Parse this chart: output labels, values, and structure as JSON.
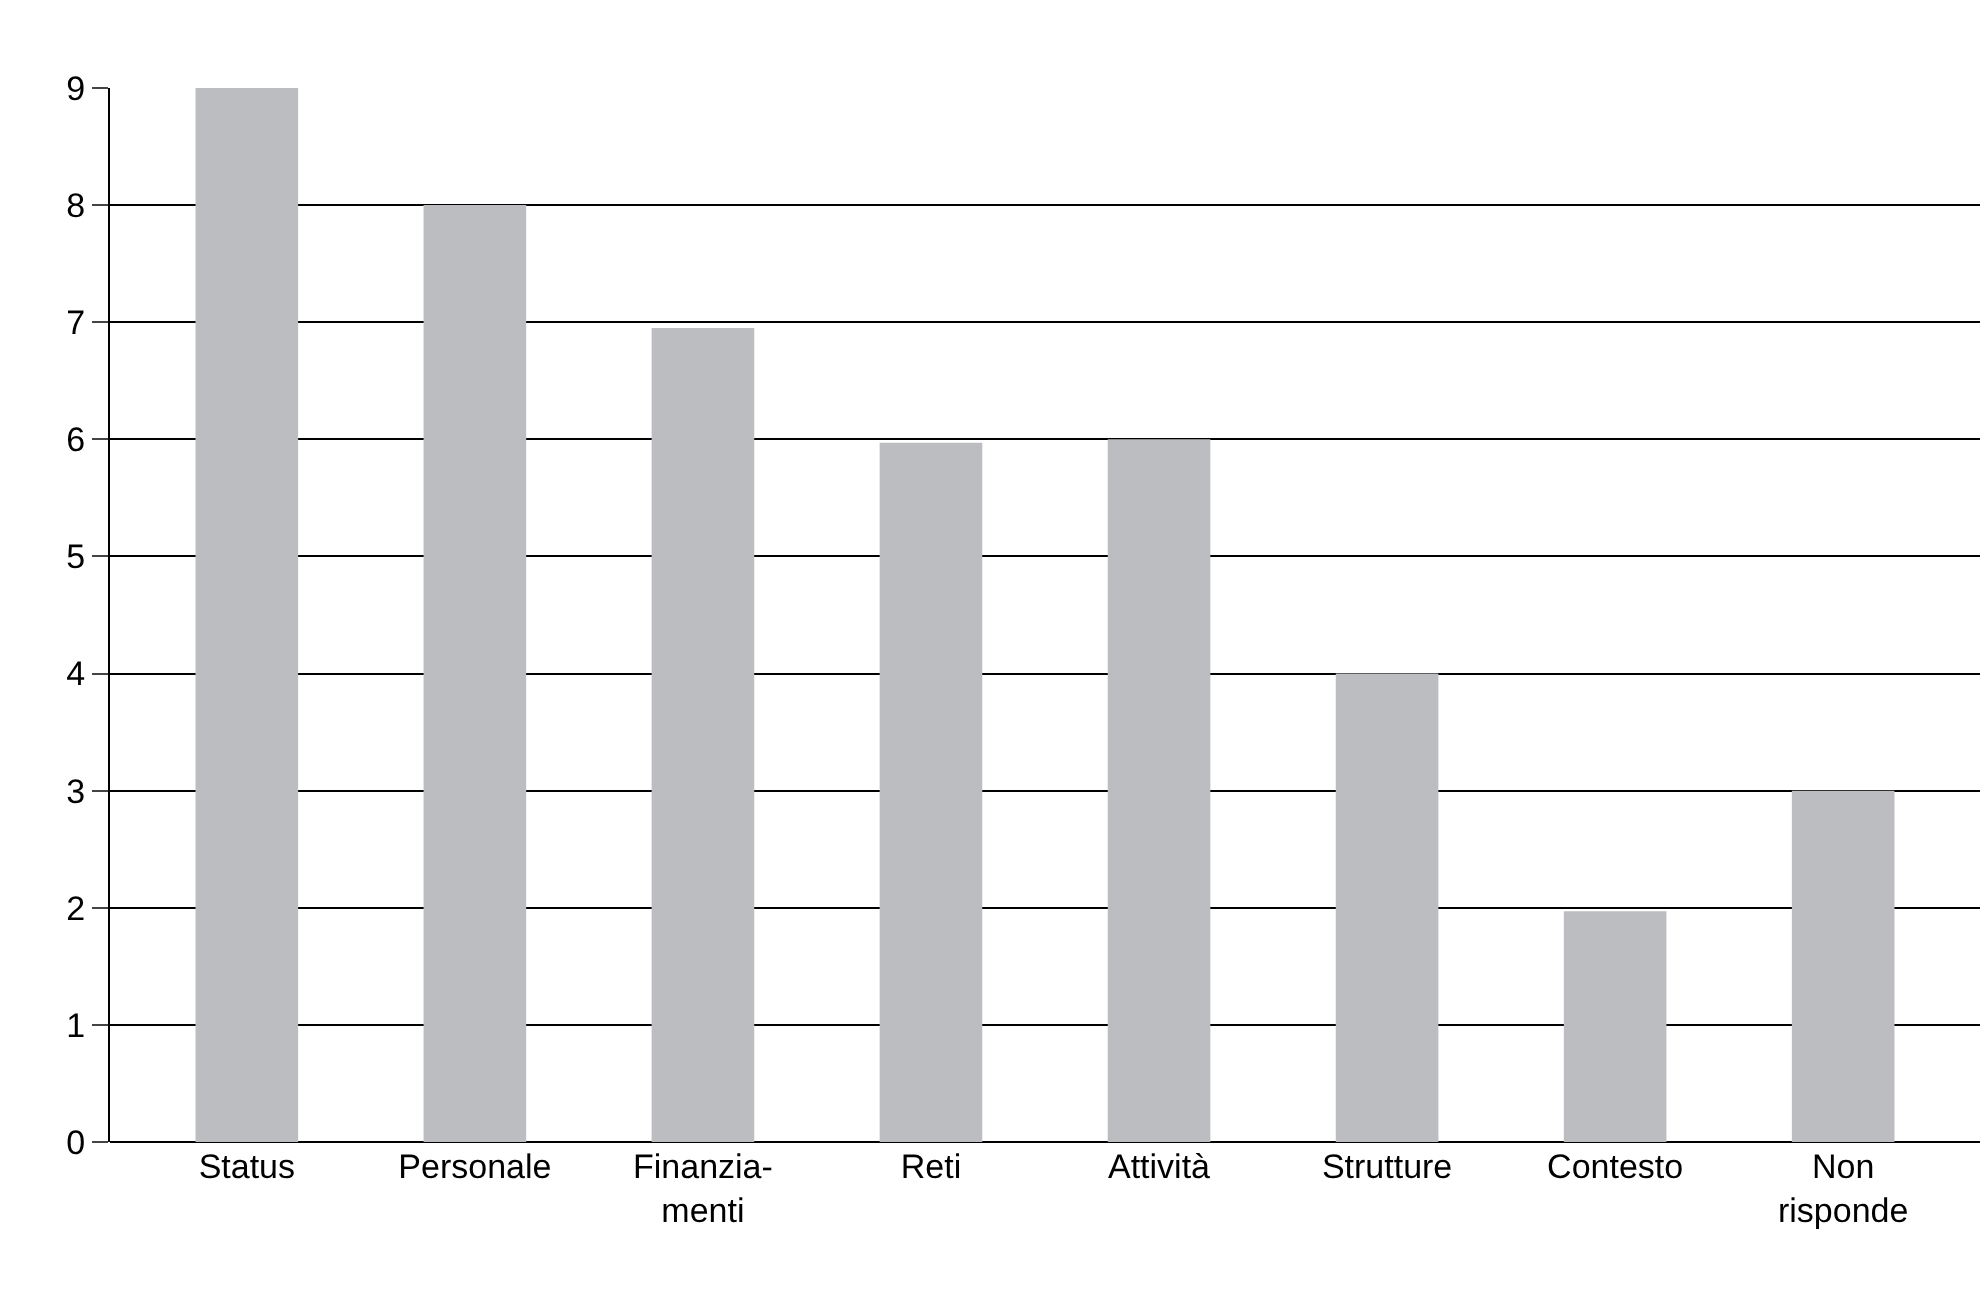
{
  "chart_data": {
    "type": "bar",
    "categories": [
      "Status",
      "Personale",
      "Finanzia-\nmenti",
      "Reti",
      "Attività",
      "Strutture",
      "Contesto",
      "Non\nrisponde"
    ],
    "values": [
      9,
      8,
      6.95,
      5.97,
      6,
      4,
      1.97,
      3
    ],
    "color": "#bcbdc0",
    "ylim": [
      0,
      9
    ],
    "yticks": [
      0,
      1,
      2,
      3,
      4,
      5,
      6,
      7,
      8,
      9
    ],
    "grid": "y"
  }
}
